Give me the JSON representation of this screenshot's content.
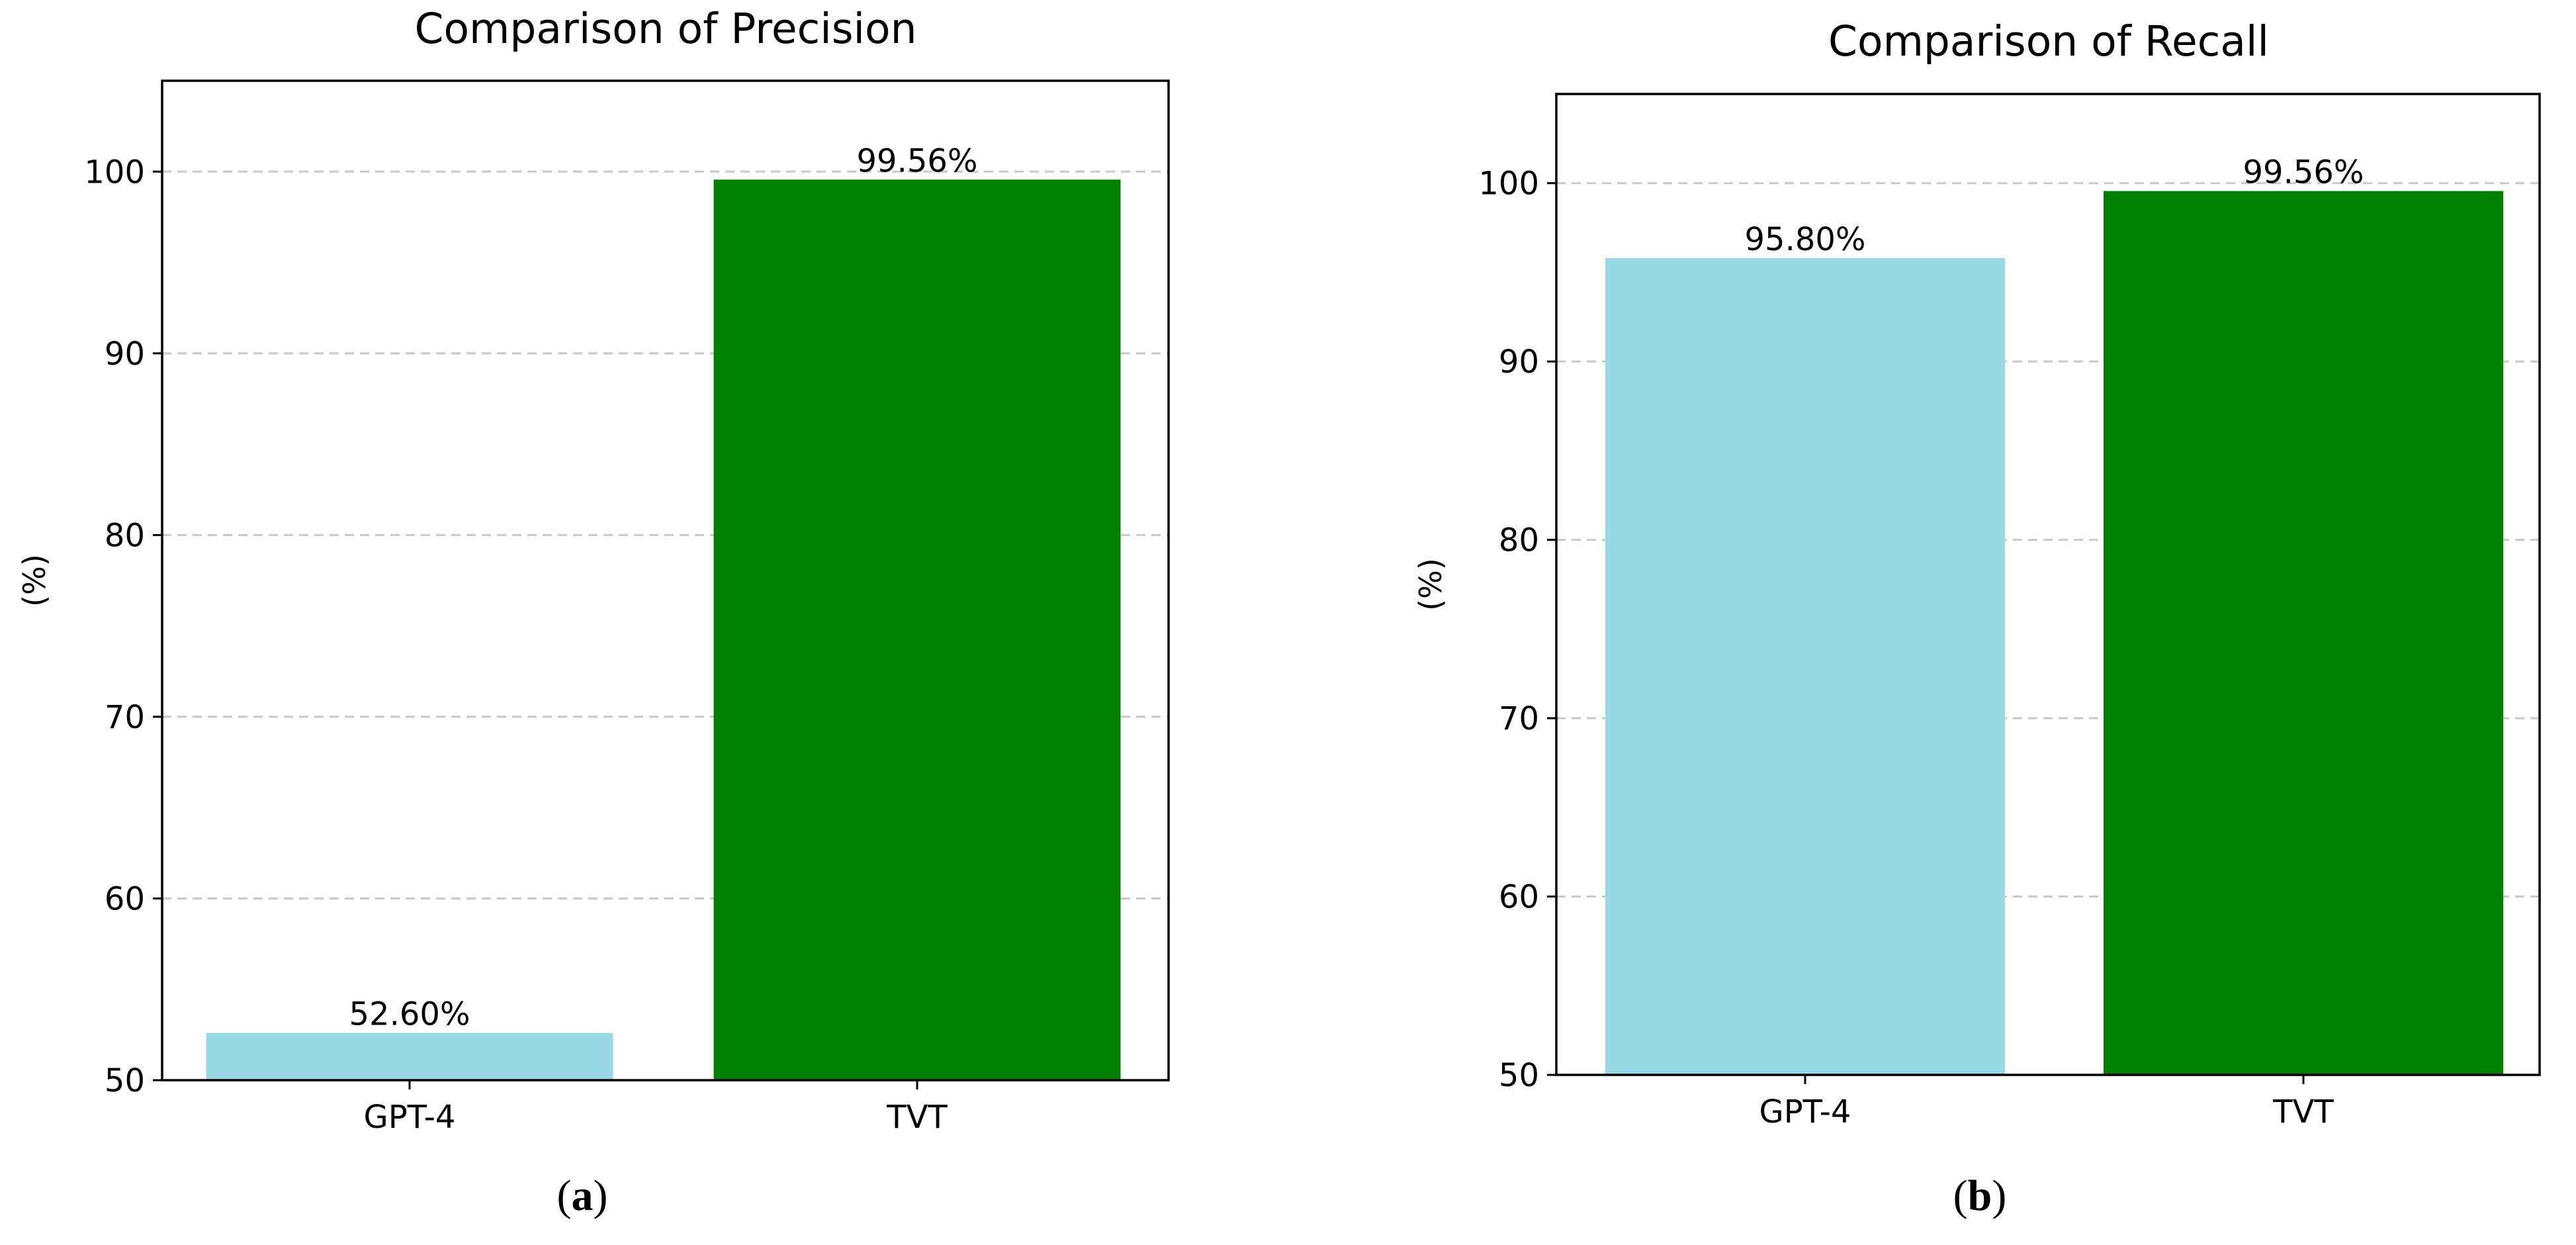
{
  "colors": {
    "gpt4_bar": "#99d9e5",
    "tvt_bar": "#008000"
  },
  "chart_data": [
    {
      "type": "bar",
      "title": "Comparison of Precision",
      "xlabel": "",
      "ylabel": "(%)",
      "ylim": [
        50,
        105
      ],
      "yticks": [
        50,
        60,
        70,
        80,
        90,
        100
      ],
      "grid": "horizontal dashed",
      "categories": [
        "GPT-4",
        "TVT"
      ],
      "values": [
        52.6,
        99.56
      ],
      "value_labels": [
        "52.60%",
        "99.56%"
      ],
      "bar_colors": [
        "#99d9e5",
        "#008000"
      ],
      "panel": {
        "open": "(",
        "letter": "a",
        "close": ")"
      }
    },
    {
      "type": "bar",
      "title": "Comparison of Recall",
      "xlabel": "",
      "ylabel": "(%)",
      "ylim": [
        50,
        105
      ],
      "yticks": [
        50,
        60,
        70,
        80,
        90,
        100
      ],
      "grid": "horizontal dashed",
      "categories": [
        "GPT-4",
        "TVT"
      ],
      "values": [
        95.8,
        99.56
      ],
      "value_labels": [
        "95.80%",
        "99.56%"
      ],
      "bar_colors": [
        "#99d9e5",
        "#008000"
      ],
      "panel": {
        "open": "(",
        "letter": "b",
        "close": ")"
      }
    }
  ]
}
